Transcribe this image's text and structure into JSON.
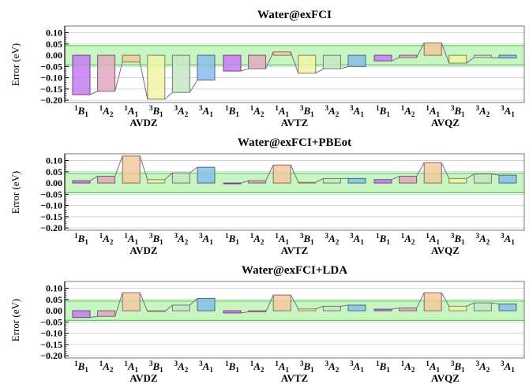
{
  "chart_data": [
    {
      "type": "bar",
      "title": "Water@exFCI",
      "ylabel": "Error (eV)",
      "ylim": [
        -0.21,
        0.13
      ],
      "yticks": [
        "0.10",
        "0.05",
        "0.00",
        "−0.05",
        "−0.10",
        "−0.15",
        "−0.20"
      ],
      "band": [
        -0.043,
        0.043
      ],
      "groups": [
        {
          "name": "AVDZ",
          "values": [
            -0.175,
            -0.16,
            -0.03,
            -0.195,
            -0.165,
            -0.11
          ]
        },
        {
          "name": "AVTZ",
          "values": [
            -0.07,
            -0.06,
            0.015,
            -0.08,
            -0.06,
            -0.05
          ]
        },
        {
          "name": "AVQZ",
          "values": [
            -0.025,
            -0.01,
            0.055,
            -0.035,
            -0.01,
            -0.012
          ]
        }
      ]
    },
    {
      "type": "bar",
      "title": "Water@exFCI+PBEot",
      "ylabel": "Error (eV)",
      "ylim": [
        -0.21,
        0.13
      ],
      "yticks": [
        "0.10",
        "0.05",
        "0.00",
        "−0.05",
        "−0.10",
        "−0.15",
        "−0.20"
      ],
      "band": [
        -0.043,
        0.043
      ],
      "groups": [
        {
          "name": "AVDZ",
          "values": [
            0.01,
            0.03,
            0.12,
            0.015,
            0.045,
            0.07
          ]
        },
        {
          "name": "AVTZ",
          "values": [
            0.0,
            0.01,
            0.08,
            0.003,
            0.02,
            0.02
          ]
        },
        {
          "name": "AVQZ",
          "values": [
            0.015,
            0.03,
            0.09,
            0.02,
            0.04,
            0.035
          ]
        }
      ]
    },
    {
      "type": "bar",
      "title": "Water@exFCI+LDA",
      "ylabel": "Error (eV)",
      "ylim": [
        -0.21,
        0.13
      ],
      "yticks": [
        "0.10",
        "0.05",
        "0.00",
        "−0.05",
        "−0.10",
        "−0.15",
        "−0.20"
      ],
      "band": [
        -0.043,
        0.043
      ],
      "groups": [
        {
          "name": "AVDZ",
          "values": [
            -0.03,
            -0.025,
            0.08,
            -0.003,
            0.025,
            0.055
          ]
        },
        {
          "name": "AVTZ",
          "values": [
            -0.01,
            -0.005,
            0.07,
            0.008,
            0.02,
            0.025
          ]
        },
        {
          "name": "AVQZ",
          "values": [
            0.007,
            0.012,
            0.08,
            0.02,
            0.035,
            0.03
          ]
        }
      ]
    }
  ],
  "state_labels": [
    {
      "mult": "1",
      "sym": "B",
      "sub": "1"
    },
    {
      "mult": "1",
      "sym": "A",
      "sub": "2"
    },
    {
      "mult": "1",
      "sym": "A",
      "sub": "1"
    },
    {
      "mult": "3",
      "sym": "B",
      "sub": "1"
    },
    {
      "mult": "3",
      "sym": "A",
      "sub": "2"
    },
    {
      "mult": "3",
      "sym": "A",
      "sub": "1"
    }
  ],
  "colors": {
    "bars": [
      "#c77df2",
      "#e0a9c1",
      "#f5c9a0",
      "#eef5a4",
      "#c6e8c4",
      "#87bee9"
    ],
    "band": "#c9f5c2",
    "band_line": "#4fd84f",
    "grid": "#cccccc",
    "connector": "#7a6a8a"
  }
}
